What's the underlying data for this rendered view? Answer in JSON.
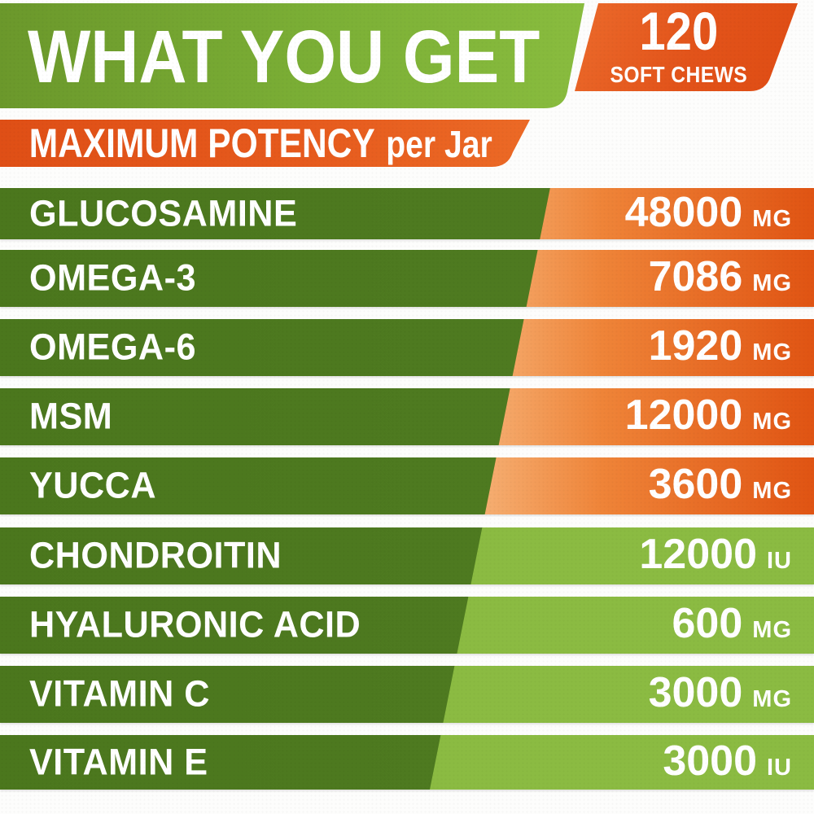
{
  "chart_data": {
    "type": "table",
    "title": "WHAT YOU GET",
    "badge": {
      "count": "120",
      "label": "SOFT CHEWS"
    },
    "subtitle_bold": "MAXIMUM POTENCY",
    "subtitle_suffix": "per Jar",
    "rows": [
      {
        "name": "GLUCOSAMINE",
        "value": "48000",
        "unit": "MG",
        "theme": "orange"
      },
      {
        "name": "OMEGA-3",
        "value": "7086",
        "unit": "MG",
        "theme": "orange"
      },
      {
        "name": "OMEGA-6",
        "value": "1920",
        "unit": "MG",
        "theme": "orange"
      },
      {
        "name": "MSM",
        "value": "12000",
        "unit": "MG",
        "theme": "orange"
      },
      {
        "name": "YUCCA",
        "value": "3600",
        "unit": "MG",
        "theme": "orange"
      },
      {
        "name": "CHONDROITIN",
        "value": "12000",
        "unit": "IU",
        "theme": "green"
      },
      {
        "name": "HYALURONIC ACID",
        "value": "600",
        "unit": "MG",
        "theme": "green"
      },
      {
        "name": "VITAMIN C",
        "value": "3000",
        "unit": "MG",
        "theme": "green"
      },
      {
        "name": "VITAMIN E",
        "value": "3000",
        "unit": "IU",
        "theme": "green"
      }
    ],
    "legend": "none",
    "layout": "diagonal split: dark green ingredient column left, amount column right (orange for first five rows, light green for last four)"
  },
  "palette": {
    "row_dark_green": "#4d7a20",
    "row_light_green": "#8bbb42",
    "row_orange_light": "#f7b87f",
    "row_orange_deep": "#e05413",
    "header_green_left": "#6b982b",
    "header_green_right": "#8abd3f",
    "accent_orange": "#e2531a",
    "text": "#ffffff",
    "background": "#ffffff"
  }
}
